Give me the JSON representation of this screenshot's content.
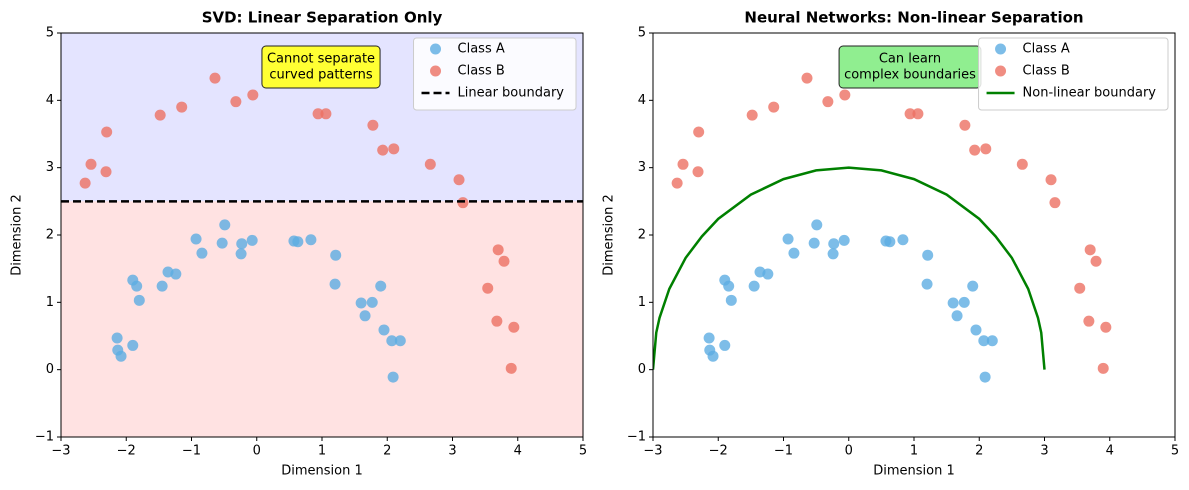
{
  "chart_data": [
    {
      "type": "scatter",
      "title": "SVD: Linear Separation Only",
      "xlabel": "Dimension 1",
      "ylabel": "Dimension 2",
      "xlim": [
        -3,
        5
      ],
      "ylim": [
        -1,
        5
      ],
      "xticks": [
        {
          "value": -3,
          "label": "−3"
        },
        {
          "value": -2,
          "label": "−2"
        },
        {
          "value": -1,
          "label": "−1"
        },
        0,
        1,
        2,
        3,
        4,
        5
      ],
      "yticks": [
        {
          "value": -1,
          "label": "−1"
        },
        0,
        1,
        2,
        3,
        4,
        5
      ],
      "legend": "upper right",
      "shading": {
        "above": "#e4e4ff",
        "below": "#ffe2e2"
      },
      "annotation": {
        "lines": [
          "Cannot separate",
          "curved patterns"
        ],
        "box_color": "#ffff33"
      },
      "series": [
        {
          "name": "Class A",
          "color": "#5dade2",
          "marker": "circle",
          "x": [
            -2.14,
            -2.13,
            -2.08,
            -1.9,
            -1.9,
            -1.84,
            -1.8,
            -1.45,
            -1.36,
            -1.24,
            -0.93,
            -0.84,
            -0.53,
            -0.49,
            -0.24,
            -0.23,
            -0.07,
            0.57,
            0.63,
            0.83,
            1.21,
            1.2,
            1.6,
            1.66,
            1.77,
            1.9,
            1.95,
            2.07,
            2.2,
            2.09
          ],
          "y": [
            0.47,
            0.29,
            0.2,
            0.36,
            1.33,
            1.24,
            1.03,
            1.24,
            1.45,
            1.42,
            1.94,
            1.73,
            1.88,
            2.15,
            1.72,
            1.87,
            1.92,
            1.91,
            1.9,
            1.93,
            1.7,
            1.27,
            0.99,
            0.8,
            1.0,
            1.24,
            0.59,
            0.43,
            0.43,
            -0.11
          ]
        },
        {
          "name": "Class B",
          "color": "#ec7063",
          "marker": "circle",
          "x": [
            -2.63,
            -2.54,
            -2.31,
            -2.3,
            -1.48,
            -1.15,
            -0.64,
            -0.32,
            -0.06,
            0.94,
            1.06,
            1.78,
            1.93,
            2.1,
            2.66,
            3.1,
            3.16,
            3.7,
            3.79,
            3.54,
            3.68,
            3.94,
            3.9
          ],
          "y": [
            2.77,
            3.05,
            2.94,
            3.53,
            3.78,
            3.9,
            4.33,
            3.98,
            4.08,
            3.8,
            3.8,
            3.63,
            3.26,
            3.28,
            3.05,
            2.82,
            2.48,
            1.78,
            1.61,
            1.21,
            0.72,
            0.63,
            0.02
          ]
        },
        {
          "name": "Linear boundary",
          "color": "#000000",
          "marker": "line",
          "linestyle": "dashed",
          "x": [
            -3,
            5
          ],
          "y": [
            2.5,
            2.5
          ]
        }
      ]
    },
    {
      "type": "scatter",
      "title": "Neural Networks: Non-linear Separation",
      "xlabel": "Dimension 1",
      "ylabel": "Dimension 2",
      "xlim": [
        -3,
        5
      ],
      "ylim": [
        -1,
        5
      ],
      "xticks": [
        {
          "value": -3,
          "label": "−3"
        },
        {
          "value": -2,
          "label": "−2"
        },
        {
          "value": -1,
          "label": "−1"
        },
        0,
        1,
        2,
        3,
        4,
        5
      ],
      "yticks": [
        {
          "value": -1,
          "label": "−1"
        },
        0,
        1,
        2,
        3,
        4,
        5
      ],
      "legend": "upper right",
      "annotation": {
        "lines": [
          "Can learn",
          "complex boundaries"
        ],
        "box_color": "#90ee90"
      },
      "series": [
        {
          "name": "Class A",
          "color": "#5dade2",
          "marker": "circle",
          "x": [
            -2.14,
            -2.13,
            -2.08,
            -1.9,
            -1.9,
            -1.84,
            -1.8,
            -1.45,
            -1.36,
            -1.24,
            -0.93,
            -0.84,
            -0.53,
            -0.49,
            -0.24,
            -0.23,
            -0.07,
            0.57,
            0.63,
            0.83,
            1.21,
            1.2,
            1.6,
            1.66,
            1.77,
            1.9,
            1.95,
            2.07,
            2.2,
            2.09
          ],
          "y": [
            0.47,
            0.29,
            0.2,
            0.36,
            1.33,
            1.24,
            1.03,
            1.24,
            1.45,
            1.42,
            1.94,
            1.73,
            1.88,
            2.15,
            1.72,
            1.87,
            1.92,
            1.91,
            1.9,
            1.93,
            1.7,
            1.27,
            0.99,
            0.8,
            1.0,
            1.24,
            0.59,
            0.43,
            0.43,
            -0.11
          ]
        },
        {
          "name": "Class B",
          "color": "#ec7063",
          "marker": "circle",
          "x": [
            -2.63,
            -2.54,
            -2.31,
            -2.3,
            -1.48,
            -1.15,
            -0.64,
            -0.32,
            -0.06,
            0.94,
            1.06,
            1.78,
            1.93,
            2.1,
            2.66,
            3.1,
            3.16,
            3.7,
            3.79,
            3.54,
            3.68,
            3.94,
            3.9
          ],
          "y": [
            2.77,
            3.05,
            2.94,
            3.53,
            3.78,
            3.9,
            4.33,
            3.98,
            4.08,
            3.8,
            3.8,
            3.63,
            3.26,
            3.28,
            3.05,
            2.82,
            2.48,
            1.78,
            1.61,
            1.21,
            0.72,
            0.63,
            0.02
          ]
        },
        {
          "name": "Non-linear boundary",
          "color": "#008000",
          "marker": "line",
          "linestyle": "solid",
          "x": [
            -3,
            -2.95,
            -2.9,
            -2.75,
            -2.5,
            -2.25,
            -2,
            -1.5,
            -1,
            -0.5,
            0,
            0.5,
            1,
            1.5,
            2,
            2.25,
            2.5,
            2.75,
            2.9,
            2.95,
            3
          ],
          "y": [
            0,
            0.55,
            0.77,
            1.2,
            1.66,
            1.98,
            2.24,
            2.6,
            2.83,
            2.96,
            3,
            2.96,
            2.83,
            2.6,
            2.24,
            1.98,
            1.66,
            1.2,
            0.77,
            0.55,
            0
          ]
        }
      ]
    }
  ]
}
